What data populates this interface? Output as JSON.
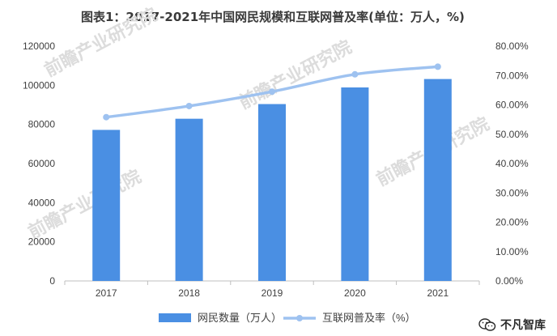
{
  "title": "图表1：2017-2021年中国网民规模和互联网普及率(单位：万人，%)",
  "watermark": "不凡智库",
  "faint_watermark": "前瞻产业研究院",
  "chart_data": {
    "type": "bar",
    "categories": [
      "2017",
      "2018",
      "2019",
      "2020",
      "2021"
    ],
    "series": [
      {
        "name": "网民数量（万人）",
        "type": "bar",
        "axis": "left",
        "color": "#4a8fe3",
        "values": [
          77200,
          82900,
          90400,
          98900,
          103200
        ]
      },
      {
        "name": "互联网普及率（%）",
        "type": "line",
        "axis": "right",
        "color": "#9ec2f0",
        "values": [
          55.8,
          59.6,
          64.5,
          70.4,
          73.0
        ]
      }
    ],
    "y_left": {
      "ylim": [
        0,
        120000
      ],
      "ticks": [
        "0",
        "20000",
        "40000",
        "60000",
        "80000",
        "100000",
        "120000"
      ]
    },
    "y_right": {
      "ylim": [
        0,
        80
      ],
      "ticks": [
        "0.00%",
        "10.00%",
        "20.00%",
        "30.00%",
        "40.00%",
        "50.00%",
        "60.00%",
        "70.00%",
        "80.00%"
      ]
    },
    "grid": false,
    "legend": "bottom"
  }
}
